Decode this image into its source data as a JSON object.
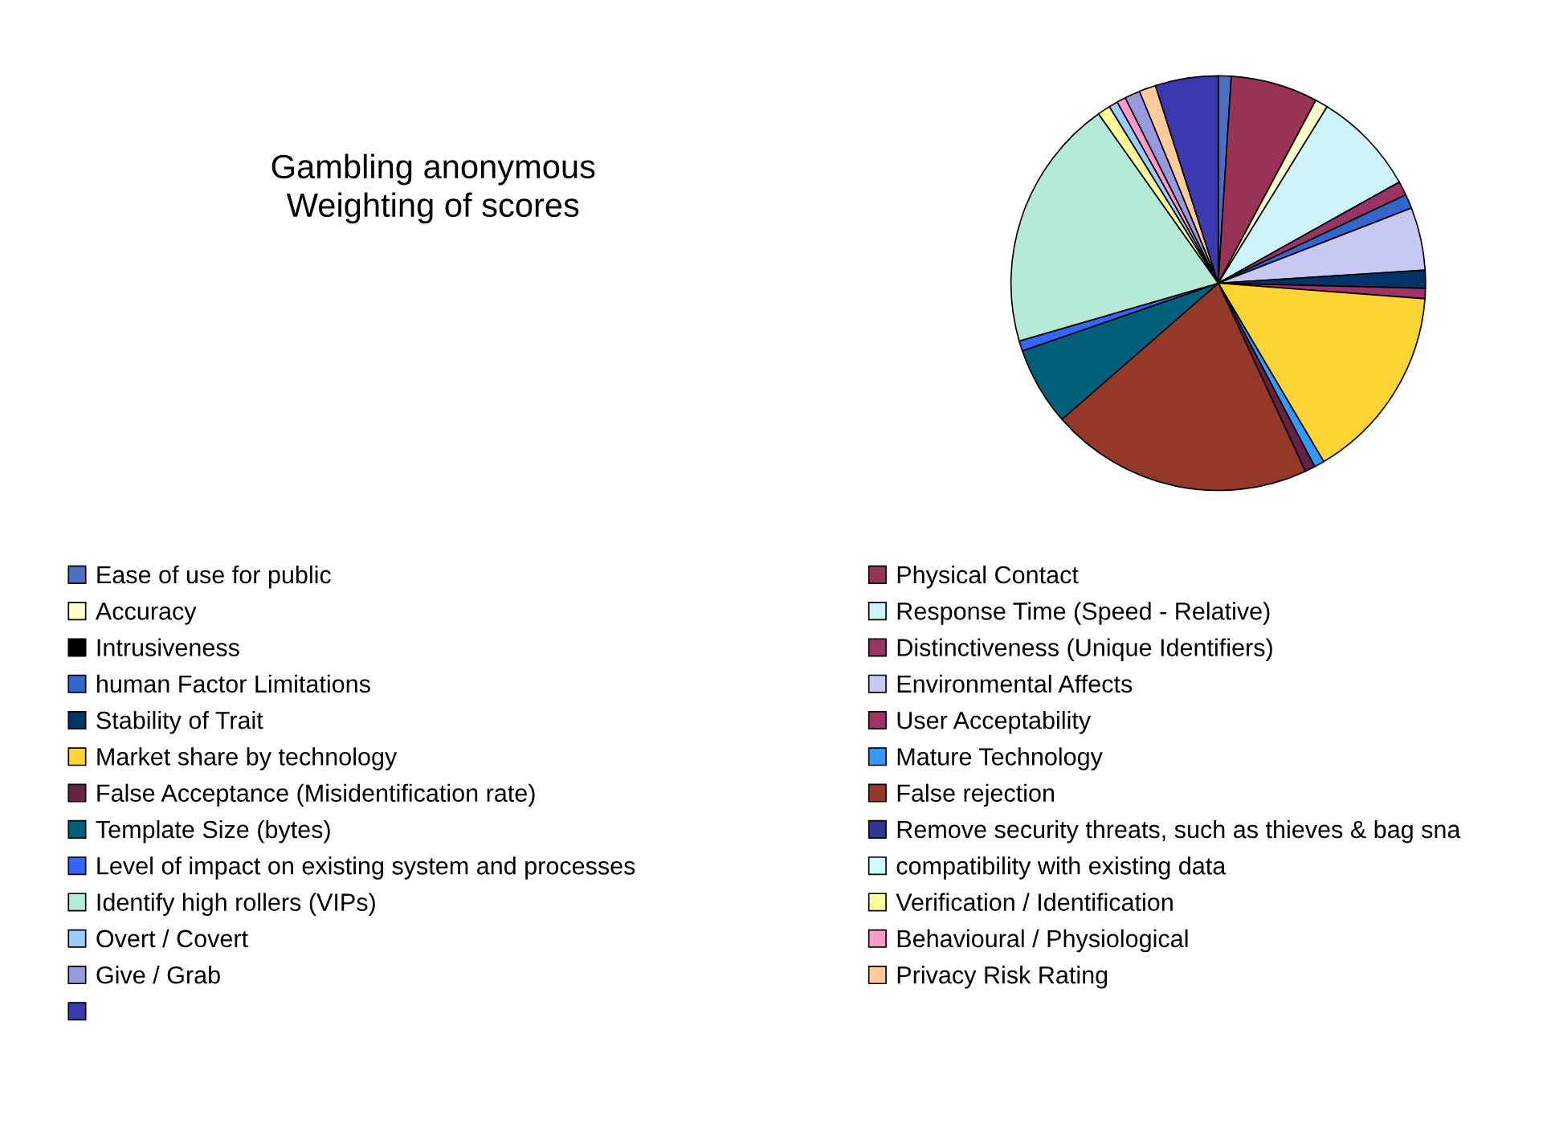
{
  "chart_data": {
    "type": "pie",
    "title": "Gambling anonymous\nWeighting of scores",
    "categories": [
      "Ease of use for public",
      "Physical Contact",
      "Accuracy",
      "Response Time (Speed - Relative)",
      "Intrusiveness",
      "Distinctiveness (Unique Identifiers)",
      "human Factor Limitations",
      "Environmental Affects",
      "Stability of Trait",
      "User Acceptability",
      "Market share by technology",
      "Mature Technology",
      "False Acceptance (Misidentification rate)",
      "False rejection",
      "Template Size (bytes)",
      "Remove security threats, such as thieves & bag sna",
      "Level of impact on existing system and processes",
      "compatibility with existing data",
      "Identify high rollers (VIPs)",
      "Verification / Identification",
      "Overt / Covert",
      "Behavioural / Physiological",
      "Give / Grab",
      "Privacy Risk Rating",
      null
    ],
    "values": [
      1.0,
      6.8,
      1.0,
      8.1,
      0,
      1.1,
      1.1,
      4.9,
      1.4,
      0.8,
      15.3,
      0.8,
      0.8,
      20.5,
      6.1,
      0,
      0.8,
      0,
      19.7,
      1.0,
      0.7,
      0.7,
      1.2,
      1.3,
      4.9
    ],
    "colors": [
      "#4f6fc0",
      "#993355",
      "#ffffcc",
      "#ccf4fa",
      "#000000",
      "#993366",
      "#3366cc",
      "#c8c8f4",
      "#003366",
      "#a03366",
      "#fcd535",
      "#3399ff",
      "#662244",
      "#94392a",
      "#00607a",
      "#333399",
      "#3366ff",
      "#ccffff",
      "#b4ead6",
      "#ffff99",
      "#99ccff",
      "#ff99cc",
      "#9999dd",
      "#ffcc99",
      "#3a3ab0"
    ],
    "legend": "bottom"
  }
}
